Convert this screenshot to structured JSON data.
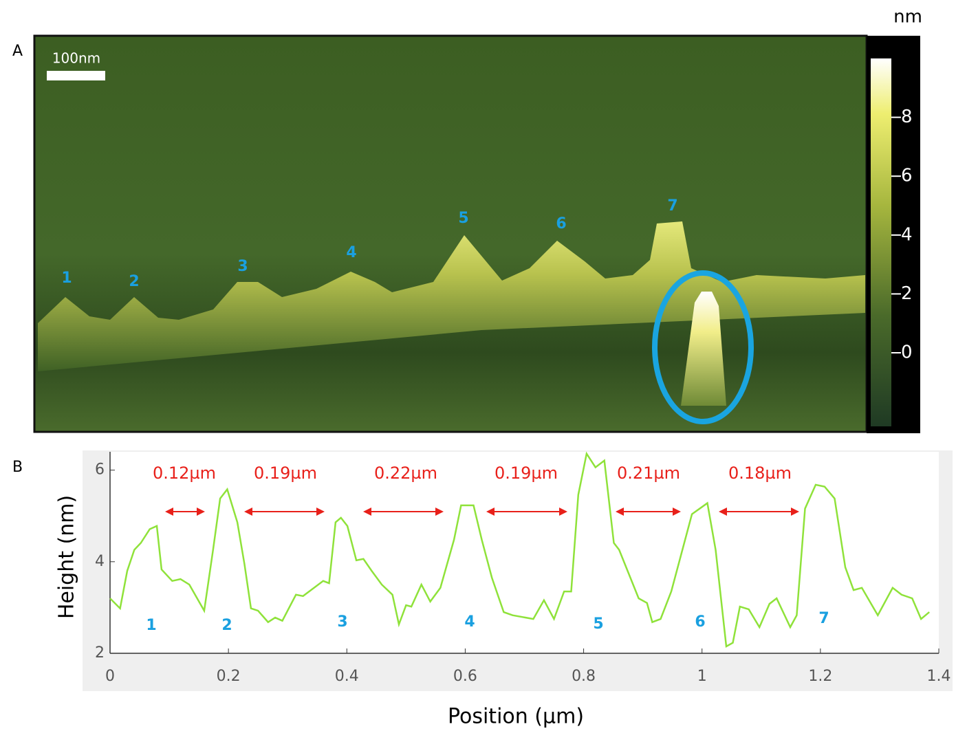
{
  "image_panel": {
    "label": "A",
    "scale_bar": "100nm",
    "peak_labels": [
      "1",
      "2",
      "3",
      "4",
      "5",
      "6",
      "7"
    ],
    "colorbar": {
      "unit": "nm",
      "lim": [
        -2.5,
        10
      ],
      "ticks": [
        0,
        2,
        4,
        6,
        8
      ]
    }
  },
  "chart_data": {
    "type": "line",
    "label": "B",
    "x_label": "Position (µm)",
    "y_label": "Height (nm)",
    "x": [
      0,
      0.017,
      0.029,
      0.041,
      0.052,
      0.067,
      0.079,
      0.087,
      0.105,
      0.119,
      0.134,
      0.159,
      0.174,
      0.186,
      0.198,
      0.215,
      0.227,
      0.238,
      0.25,
      0.267,
      0.279,
      0.291,
      0.314,
      0.326,
      0.36,
      0.37,
      0.381,
      0.39,
      0.401,
      0.416,
      0.428,
      0.442,
      0.459,
      0.477,
      0.488,
      0.5,
      0.509,
      0.526,
      0.541,
      0.558,
      0.581,
      0.593,
      0.614,
      0.628,
      0.645,
      0.665,
      0.68,
      0.715,
      0.733,
      0.75,
      0.767,
      0.779,
      0.791,
      0.805,
      0.82,
      0.835,
      0.851,
      0.86,
      0.893,
      0.907,
      0.916,
      0.93,
      0.948,
      0.983,
      1.009,
      1.023,
      1.041,
      1.052,
      1.064,
      1.079,
      1.097,
      1.114,
      1.126,
      1.149,
      1.16,
      1.174,
      1.192,
      1.207,
      1.224,
      1.242,
      1.256,
      1.27,
      1.297,
      1.322,
      1.337,
      1.355,
      1.37,
      1.384
    ],
    "values": [
      3.2,
      2.98,
      3.8,
      4.26,
      4.41,
      4.71,
      4.78,
      3.83,
      3.58,
      3.62,
      3.5,
      2.93,
      4.26,
      5.38,
      5.58,
      4.86,
      3.95,
      2.98,
      2.93,
      2.68,
      2.78,
      2.71,
      3.28,
      3.25,
      3.58,
      3.53,
      4.86,
      4.96,
      4.78,
      4.03,
      4.06,
      3.8,
      3.5,
      3.28,
      2.63,
      3.05,
      3.02,
      3.5,
      3.13,
      3.43,
      4.48,
      5.23,
      5.23,
      4.48,
      3.65,
      2.9,
      2.83,
      2.75,
      3.16,
      2.75,
      3.35,
      3.35,
      5.46,
      6.36,
      6.06,
      6.21,
      4.41,
      4.26,
      3.2,
      3.1,
      2.68,
      2.75,
      3.35,
      5.04,
      5.28,
      4.26,
      2.15,
      2.23,
      3.02,
      2.96,
      2.57,
      3.08,
      3.2,
      2.57,
      2.83,
      5.16,
      5.68,
      5.64,
      5.38,
      3.88,
      3.38,
      3.43,
      2.83,
      3.43,
      3.28,
      3.2,
      2.75,
      2.9
    ],
    "color": "#8fe23a",
    "xlim": [
      0,
      1.4
    ],
    "ylim": [
      2,
      6.4
    ],
    "xticks": [
      0,
      0.2,
      0.4,
      0.6,
      0.8,
      1,
      1.2,
      1.4
    ],
    "yticks": [
      2,
      4,
      6
    ],
    "annotations": [
      "0.12µm",
      "0.19µm",
      "0.22µm",
      "0.19µm",
      "0.21µm",
      "0.18µm"
    ],
    "peak_labels": [
      "1",
      "2",
      "3",
      "4",
      "5",
      "6",
      "7"
    ]
  }
}
